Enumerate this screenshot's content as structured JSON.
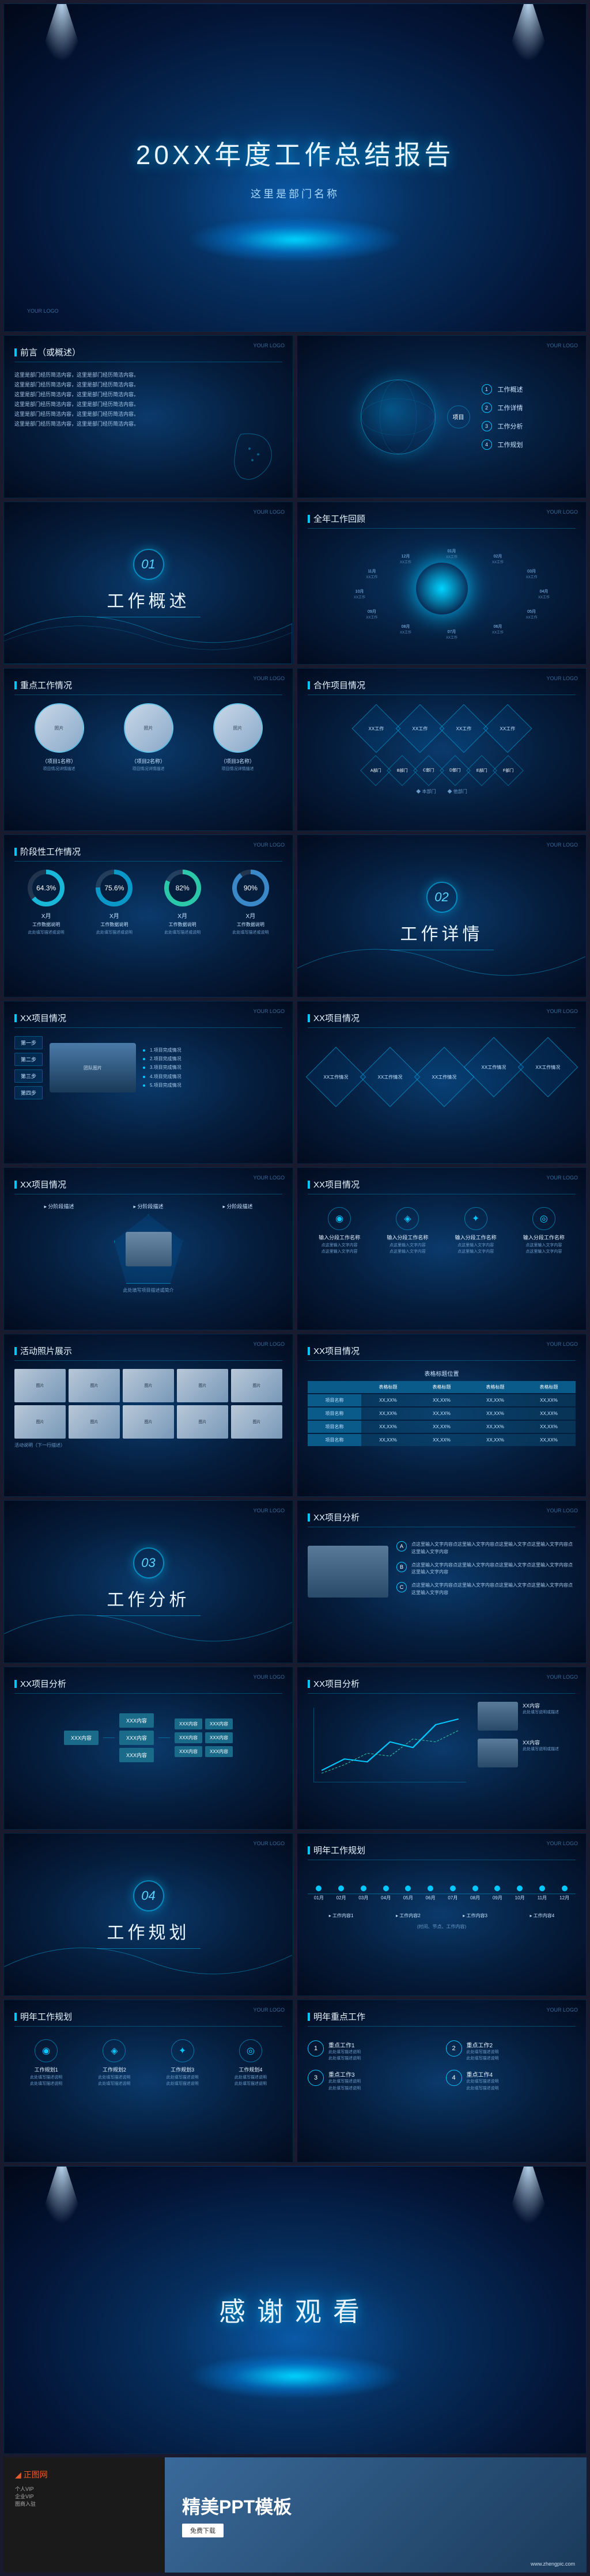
{
  "colors": {
    "accent": "#00c8ff",
    "bg_deep": "#020b1e",
    "bg_mid": "#051e3e",
    "bg_light": "#0a3a6b",
    "text": "#e8f4ff",
    "text_dim": "#a8c8e8",
    "teal": "#1a6a8a",
    "orange": "#e85a2a"
  },
  "cover": {
    "title": "20XX年度工作总结报告",
    "subtitle": "这里是部门名称",
    "logo": "YOUR LOGO"
  },
  "preface": {
    "title": "前言（或概述）",
    "lines": [
      "这里是部门经历简洁内容，这里是部门经历简洁内容。",
      "这里是部门经历简洁内容，这里是部门经历简洁内容。",
      "这里是部门经历简洁内容，这里是部门经历简洁内容。",
      "这里是部门经历简洁内容，这里是部门经历简洁内容。",
      "这里是部门经历简洁内容，这里是部门经历简洁内容。",
      "这里是部门经历简洁内容，这里是部门经历简洁内容。"
    ]
  },
  "toc": {
    "center": "项目",
    "items": [
      "工作概述",
      "工作详情",
      "工作分析",
      "工作规划"
    ]
  },
  "sections": [
    {
      "num": "01",
      "title": "工作概述"
    },
    {
      "num": "02",
      "title": "工作详情"
    },
    {
      "num": "03",
      "title": "工作分析"
    },
    {
      "num": "04",
      "title": "工作规划"
    }
  ],
  "yearReview": {
    "title": "全年工作回顾",
    "months": [
      "01月",
      "02月",
      "03月",
      "04月",
      "05月",
      "06月",
      "07月",
      "08月",
      "09月",
      "10月",
      "11月",
      "12月"
    ],
    "item": "XX工作"
  },
  "keyWork": {
    "title": "重点工作情况",
    "items": [
      {
        "label": "（项目1名称）",
        "desc": "项目情况详情描述"
      },
      {
        "label": "（项目2名称）",
        "desc": "项目情况详情描述"
      },
      {
        "label": "（项目3名称）",
        "desc": "项目情况详情描述"
      }
    ]
  },
  "coop": {
    "title": "合作项目情况",
    "top": [
      "XX工作",
      "XX工作",
      "XX工作",
      "XX工作"
    ],
    "bottom": [
      "A部门",
      "B部门",
      "C部门",
      "D部门",
      "E部门",
      "F部门"
    ],
    "legend": [
      "本部门",
      "他部门"
    ]
  },
  "stage": {
    "title": "阶段性工作情况",
    "donuts": [
      {
        "pct": 64.3,
        "color": "#1ab8d8",
        "label": "X月",
        "t": "工作数据说明",
        "d": "此处填写描述或说明"
      },
      {
        "pct": 75.6,
        "color": "#0a98c8",
        "label": "X月",
        "t": "工作数据说明",
        "d": "此处填写描述或说明"
      },
      {
        "pct": 82.0,
        "color": "#2ac8a8",
        "label": "X月",
        "t": "工作数据说明",
        "d": "此处填写描述或说明"
      },
      {
        "pct": 90.0,
        "color": "#3a88c8",
        "label": "X月",
        "t": "工作数据说明",
        "d": "此处填写描述或说明"
      }
    ]
  },
  "proj1": {
    "title": "XX项目情况",
    "steps": [
      "第一步",
      "第二步",
      "第三步",
      "第四步"
    ],
    "bullets": [
      "1.项目完成情况",
      "2.项目完成情况",
      "3.项目完成情况",
      "4.项目完成情况",
      "5.项目完成情况"
    ]
  },
  "proj2": {
    "title": "XX项目情况",
    "diamonds": [
      "XX工作情况",
      "XX工作情况",
      "XX工作情况",
      "XX工作情况",
      "XX工作情况"
    ]
  },
  "proj3": {
    "title": "XX项目情况",
    "stages": [
      "分阶段描述",
      "分阶段描述",
      "分阶段描述"
    ],
    "desc": "此处填写项目描述或简介"
  },
  "proj4": {
    "title": "XX项目情况",
    "icons": [
      {
        "glyph": "◉",
        "t": "输入分段工作名称",
        "d": "点这里输入文字内容\\n点这里输入文字内容"
      },
      {
        "glyph": "◈",
        "t": "输入分段工作名称",
        "d": "点这里输入文字内容\\n点这里输入文字内容"
      },
      {
        "glyph": "✦",
        "t": "输入分段工作名称",
        "d": "点这里输入文字内容\\n点这里输入文字内容"
      },
      {
        "glyph": "◎",
        "t": "输入分段工作名称",
        "d": "点这里输入文字内容\\n点这里输入文字内容"
      }
    ]
  },
  "album": {
    "title": "活动照片展示",
    "caption": "活动说明（下一行描述）",
    "count": 10
  },
  "table": {
    "title": "XX项目情况",
    "header": "表格标题位置",
    "cols": [
      "",
      "表格标题",
      "表格标题",
      "表格标题",
      "表格标题"
    ],
    "rows": [
      [
        "项目名称",
        "XX,XX%",
        "XX,XX%",
        "XX,XX%",
        "XX,XX%"
      ],
      [
        "项目名称",
        "XX,XX%",
        "XX,XX%",
        "XX,XX%",
        "XX,XX%"
      ],
      [
        "项目名称",
        "XX,XX%",
        "XX,XX%",
        "XX,XX%",
        "XX,XX%"
      ],
      [
        "项目名称",
        "XX,XX%",
        "XX,XX%",
        "XX,XX%",
        "XX,XX%"
      ]
    ]
  },
  "analysis1": {
    "title": "XX项目分析",
    "points": [
      "A",
      "B",
      "C"
    ],
    "text": "点这里输入文字内容点这里输入文字内容点这里输入文字点这里输入文字内容点这里输入文字内容"
  },
  "orgchart": {
    "title": "XX项目分析",
    "root": "XXX内容",
    "children": [
      "XXX内容",
      "XXX内容",
      "XXX内容"
    ],
    "leaves": [
      "XXX内容",
      "XXX内容",
      "XXX内容",
      "XXX内容",
      "XXX内容",
      "XXX内容"
    ]
  },
  "analysis2": {
    "title": "XX项目分析",
    "items": [
      {
        "t": "XX内容",
        "d": "此处填写说明或描述"
      },
      {
        "t": "XX内容",
        "d": "此处填写说明或描述"
      }
    ]
  },
  "plan_tl": {
    "title": "明年工作规划",
    "months": [
      "01月",
      "02月",
      "03月",
      "04月",
      "05月",
      "06月",
      "07月",
      "08月",
      "09月",
      "10月",
      "11月",
      "12月"
    ],
    "items": [
      "工作内容1",
      "工作内容2",
      "工作内容3",
      "工作内容4"
    ],
    "desc": "(时间、节点、工作内容)"
  },
  "plan_icons": {
    "title": "明年工作规划",
    "items": [
      {
        "g": "◉",
        "t": "工作规划1",
        "d": "此处填写描述说明\\n此处填写描述说明"
      },
      {
        "g": "◈",
        "t": "工作规划2",
        "d": "此处填写描述说明\\n此处填写描述说明"
      },
      {
        "g": "✦",
        "t": "工作规划3",
        "d": "此处填写描述说明\\n此处填写描述说明"
      },
      {
        "g": "◎",
        "t": "工作规划4",
        "d": "此处填写描述说明\\n此处填写描述说明"
      }
    ]
  },
  "plan_key": {
    "title": "明年重点工作",
    "items": [
      {
        "t": "重点工作1",
        "d": "此处填写描述说明\\n此处填写描述说明"
      },
      {
        "t": "重点工作2",
        "d": "此处填写描述说明\\n此处填写描述说明"
      },
      {
        "t": "重点工作3",
        "d": "此处填写描述说明\\n此处填写描述说明"
      },
      {
        "t": "重点工作4",
        "d": "此处填写描述说明\\n此处填写描述说明"
      }
    ]
  },
  "thanks": "感谢观看",
  "banner": {
    "brand": "正图网",
    "links": [
      "个人VIP",
      "企业VIP",
      "图商入驻"
    ],
    "title": "精美PPT模板",
    "btn": "免费下载",
    "url": "www.zhengpic.com"
  }
}
